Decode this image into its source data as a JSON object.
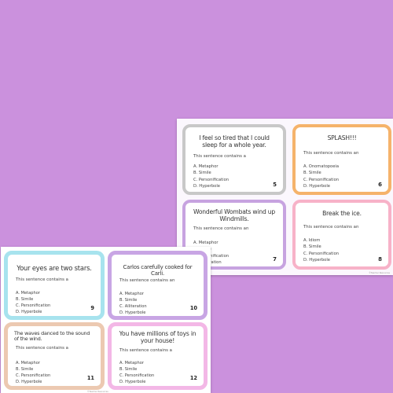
{
  "colors": {
    "background": "#cb91dd",
    "card5_border": "#c8c8c8",
    "card6_border": "#f5b36b",
    "card7_border": "#c7a3e0",
    "card8_border": "#f7b2c8",
    "card9_border": "#a7e3ee",
    "card10_border": "#c8a5e4",
    "card11_border": "#ecc9b1",
    "card12_border": "#f3b7e6"
  },
  "sheet_back": {
    "footer": "©Teacher Resources",
    "cards": [
      {
        "title": "I feel so tired that I could sleep for a whole year.",
        "prompt": "This sentence contains a",
        "options": [
          "A.  Metaphor",
          "B.  Simile",
          "C.  Personification",
          "D.  Hyperbole"
        ],
        "number": "5"
      },
      {
        "title": "SPLASH!!!",
        "prompt": "This sentence contains an",
        "options": [
          "A.   Onomatopoeia",
          "B.   Simile",
          "C.   Personification",
          "D.   Hyperbole"
        ],
        "number": "6"
      },
      {
        "title": "Wonderful Wombats wind up Windmills.",
        "prompt": "This sentence contains an",
        "options": [
          "A.  Metaphor",
          "B.  Simile",
          "C.  Personification",
          "D.  Alliteration"
        ],
        "number": "7"
      },
      {
        "title": "Break the ice.",
        "prompt": "This sentence contains an",
        "options": [
          "A.   Idiom",
          "B.   Simile",
          "C.   Personification",
          "D.   Hyperbole"
        ],
        "number": "8"
      }
    ]
  },
  "sheet_front": {
    "footer": "©Teacher Resources",
    "cards": [
      {
        "title": "Your eyes are two stars.",
        "prompt": "This sentence contains a",
        "options": [
          "A.  Metaphor",
          "B.  Simile",
          "C.  Personification",
          "D.  Hyperbole"
        ],
        "number": "9"
      },
      {
        "title": "Carlos carefully cooked for Carli.",
        "prompt": "This sentence contains an",
        "options": [
          "A.  Metaphor",
          "B.  Simile",
          "C.  Alliteration",
          "D.  Hyperbole"
        ],
        "number": "10"
      },
      {
        "title": "The waves danced to the sound of the wind.",
        "prompt": "This sentence contains a",
        "options": [
          "A.  Metaphor",
          "B.  Simile",
          "C.  Personification",
          "D.  Hyperbole"
        ],
        "number": "11"
      },
      {
        "title": "You have millions of toys in your house!",
        "prompt": "This sentence contains a",
        "options": [
          "A.  Metaphor",
          "B.  Simile",
          "C.  Personification",
          "D.  Hyperbole"
        ],
        "number": "12"
      }
    ]
  }
}
